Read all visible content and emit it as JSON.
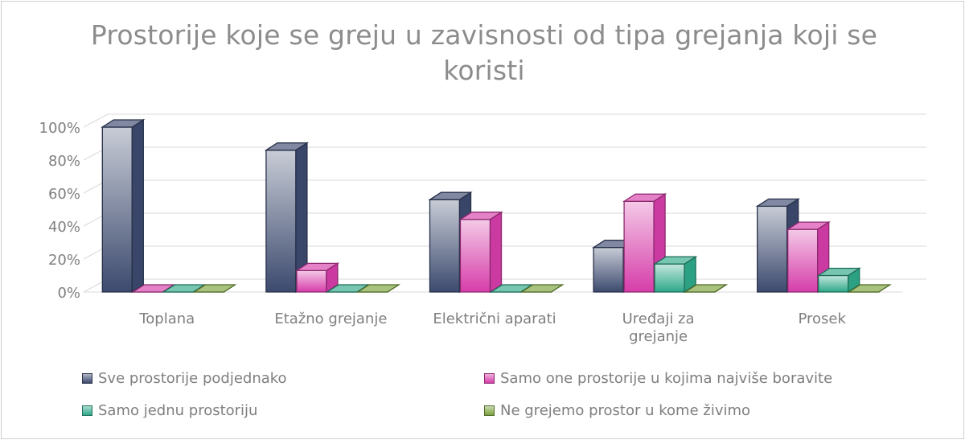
{
  "chart_data": {
    "type": "bar",
    "title": "Prostorije koje se greju u zavisnosti od tipa grejanja koji se koristi",
    "categories": [
      "Toplana",
      "Etažno grejanje",
      "Električni aparati",
      "Uređaji za grejanje",
      "Prosek"
    ],
    "series": [
      {
        "name": "Sve prostorije podjednako",
        "values": [
          100,
          86,
          56,
          27,
          52
        ],
        "color": "#3c4a6e"
      },
      {
        "name": "Samo one prostorije u kojima najviše boravite",
        "values": [
          0,
          13,
          44,
          55,
          38
        ],
        "color": "#d63da9"
      },
      {
        "name": "Samo jednu prostoriju",
        "values": [
          0,
          0,
          0,
          17,
          10
        ],
        "color": "#2ea889"
      },
      {
        "name": "Ne grejemo prostor u kome živimo",
        "values": [
          0,
          0,
          0,
          0,
          0
        ],
        "color": "#7aa33a"
      }
    ],
    "yticks": [
      "0%",
      "20%",
      "40%",
      "60%",
      "80%",
      "100%"
    ],
    "ylim": [
      0,
      100
    ],
    "grid": true,
    "legend_position": "bottom"
  }
}
